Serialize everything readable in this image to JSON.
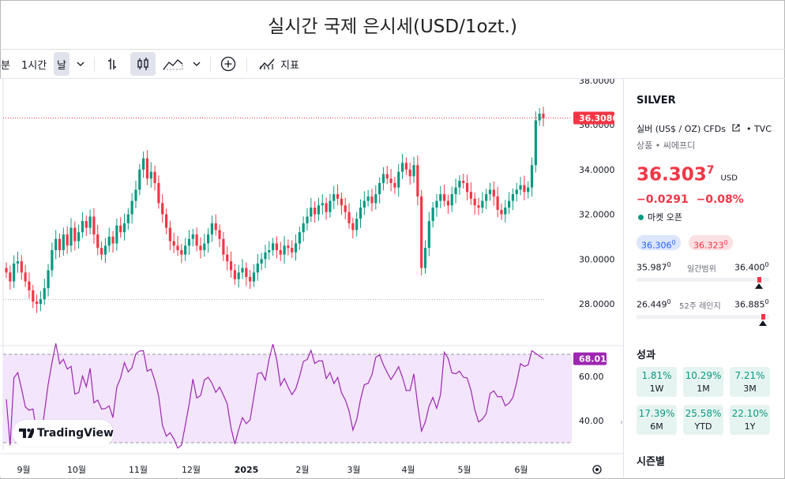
{
  "title": "실시간 국제 은시세(USD/1ozt.)",
  "toolbar": {
    "interval_partial": "분",
    "interval_1h": "1시간",
    "interval_day": "날",
    "indicators_label": "지표",
    "icons": [
      "chevron-down-icon",
      "bar-chart-icon",
      "candlestick-icon",
      "area-chart-icon",
      "chevron-down-icon",
      "plus-circle-icon",
      "indicators-icon"
    ]
  },
  "chart_data": [
    {
      "type": "candlestick",
      "title": "",
      "x_tick_labels": [
        "9월",
        "10월",
        "11월",
        "12월",
        "2025",
        "2월",
        "3월",
        "4월",
        "5월",
        "6월"
      ],
      "y_tick_labels": [
        "36.0000",
        "34.0000",
        "32.0000",
        "30.0000",
        "28.0000"
      ],
      "ylim": [
        27.7,
        38.1
      ],
      "top_label": "38.0000",
      "last_price_label": "36.3080",
      "last_price": 36.308,
      "reference_level": 28.2,
      "closes_approx": [
        29.4,
        29.0,
        29.8,
        29.9,
        29.4,
        29.0,
        28.6,
        28.1,
        28.0,
        28.2,
        28.7,
        29.5,
        30.4,
        30.9,
        30.4,
        31.1,
        30.6,
        31.4,
        30.8,
        31.2,
        31.7,
        31.4,
        31.9,
        31.1,
        30.5,
        30.2,
        30.6,
        31.0,
        30.7,
        31.5,
        31.2,
        31.6,
        32.0,
        32.6,
        33.1,
        34.0,
        34.5,
        33.6,
        33.9,
        33.4,
        32.5,
        32.0,
        31.4,
        30.8,
        30.6,
        30.4,
        30.2,
        30.6,
        30.9,
        31.1,
        30.6,
        30.4,
        30.7,
        31.1,
        31.6,
        31.3,
        30.9,
        30.2,
        29.9,
        29.5,
        29.1,
        29.4,
        29.6,
        29.2,
        29.0,
        29.4,
        29.8,
        30.0,
        30.3,
        30.4,
        30.7,
        30.4,
        30.2,
        30.6,
        30.5,
        30.3,
        30.7,
        31.2,
        31.6,
        31.9,
        32.3,
        32.0,
        32.4,
        32.5,
        32.1,
        32.6,
        32.9,
        32.7,
        32.4,
        32.1,
        31.6,
        31.3,
        31.8,
        32.3,
        32.6,
        32.8,
        32.5,
        32.9,
        33.4,
        33.8,
        33.6,
        33.4,
        33.2,
        33.9,
        34.3,
        34.0,
        33.7,
        34.2,
        32.8,
        29.6,
        30.5,
        31.7,
        32.3,
        32.6,
        32.9,
        32.6,
        32.4,
        32.9,
        33.2,
        33.5,
        33.4,
        33.0,
        32.7,
        32.4,
        32.3,
        32.6,
        32.9,
        33.1,
        32.8,
        32.2,
        32.0,
        32.3,
        32.6,
        32.9,
        33.1,
        33.3,
        33.0,
        33.2,
        34.2,
        36.2,
        36.5,
        36.3
      ]
    },
    {
      "type": "line",
      "title": "",
      "y_tick_labels": [
        "60.00",
        "40.00"
      ],
      "ylim": [
        28,
        75
      ],
      "band": [
        30,
        70
      ],
      "last_value_label": "68.01",
      "last_value": 68.01,
      "color": "#9C27B0",
      "band_fill": "#F3E5FC"
    }
  ],
  "watermark_text": "TradingView",
  "sidebar": {
    "symbol": "SILVER",
    "description": "실버 (US$ / OZ) CFDs",
    "exchange": "TVC",
    "category": "상품 • 씨에프디",
    "price_main": "36.303",
    "price_sup": "7",
    "currency": "USD",
    "change": "−0.0291",
    "change_pct": "−0.08%",
    "market_status": "마켓 오픈",
    "bid": "36.306",
    "bid_sup": "0",
    "ask": "36.323",
    "ask_sup": "0",
    "day_low": "35.987",
    "day_low_sup": "0",
    "day_range_label": "일간범위",
    "day_high": "36.400",
    "day_high_sup": "0",
    "day_pos": 0.92,
    "wk_low": "26.449",
    "wk_low_sup": "0",
    "wk_range_label": "52주 레인지",
    "wk_high": "36.885",
    "wk_high_sup": "0",
    "wk_pos": 0.95,
    "perf_title": "성과",
    "performance": [
      {
        "value": "1.81%",
        "label": "1W"
      },
      {
        "value": "10.29%",
        "label": "1M"
      },
      {
        "value": "7.21%",
        "label": "3M"
      },
      {
        "value": "17.39%",
        "label": "6M"
      },
      {
        "value": "25.58%",
        "label": "YTD"
      },
      {
        "value": "22.10%",
        "label": "1Y"
      }
    ],
    "seasonal_title": "시즌별",
    "colors": {
      "up": "#089981",
      "down": "#F23645",
      "perf_bg": "#E6F4F1"
    }
  }
}
